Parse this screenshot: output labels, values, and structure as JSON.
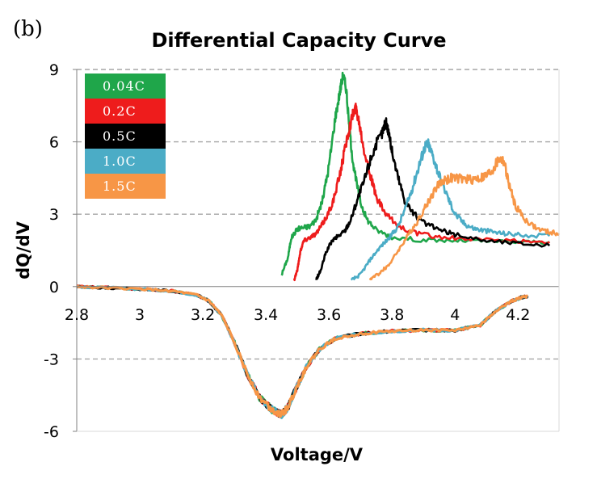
{
  "panel_label": "(b)",
  "chart_data": {
    "type": "line",
    "title": "Differential Capacity Curve",
    "xlabel": "Voltage/V",
    "ylabel": "dQ/dV",
    "xlim": [
      2.8,
      4.33
    ],
    "ylim": [
      -6,
      9
    ],
    "x_ticks": [
      2.8,
      3,
      3.2,
      3.4,
      3.6,
      3.8,
      4,
      4.2
    ],
    "x_tick_labels": [
      "2.8",
      "3",
      "3.2",
      "3.4",
      "3.6",
      "3.8",
      "4",
      "4.2"
    ],
    "y_ticks": [
      -6,
      -3,
      0,
      3,
      6,
      9
    ],
    "y_tick_labels": [
      "-6",
      "-3",
      "0",
      "3",
      "6",
      "9"
    ],
    "grid": "horizontal dashed",
    "legend_position": "top-left",
    "series": [
      {
        "name": "0.04C",
        "color": "#1fa64a",
        "charge": [
          [
            3.45,
            0.5
          ],
          [
            3.47,
            1.2
          ],
          [
            3.48,
            2.0
          ],
          [
            3.5,
            2.4
          ],
          [
            3.52,
            2.45
          ],
          [
            3.54,
            2.5
          ],
          [
            3.56,
            2.8
          ],
          [
            3.58,
            3.6
          ],
          [
            3.6,
            5.0
          ],
          [
            3.62,
            7.0
          ],
          [
            3.635,
            8.1
          ],
          [
            3.645,
            8.8
          ],
          [
            3.655,
            8.2
          ],
          [
            3.665,
            6.5
          ],
          [
            3.68,
            4.8
          ],
          [
            3.7,
            3.5
          ],
          [
            3.72,
            2.8
          ],
          [
            3.75,
            2.35
          ],
          [
            3.8,
            2.05
          ],
          [
            3.9,
            1.92
          ],
          [
            4.0,
            1.9
          ],
          [
            4.1,
            1.88
          ],
          [
            4.2,
            1.85
          ],
          [
            4.3,
            1.85
          ]
        ]
      },
      {
        "name": "0.2C",
        "color": "#ee1c1c",
        "charge": [
          [
            3.49,
            0.3
          ],
          [
            3.5,
            0.7
          ],
          [
            3.51,
            1.5
          ],
          [
            3.52,
            1.9
          ],
          [
            3.54,
            2.05
          ],
          [
            3.56,
            2.2
          ],
          [
            3.58,
            2.6
          ],
          [
            3.6,
            3.1
          ],
          [
            3.62,
            3.8
          ],
          [
            3.64,
            5.0
          ],
          [
            3.66,
            6.3
          ],
          [
            3.675,
            7.1
          ],
          [
            3.685,
            7.4
          ],
          [
            3.695,
            6.9
          ],
          [
            3.71,
            5.8
          ],
          [
            3.73,
            4.7
          ],
          [
            3.75,
            3.7
          ],
          [
            3.78,
            3.0
          ],
          [
            3.82,
            2.5
          ],
          [
            3.88,
            2.2
          ],
          [
            3.95,
            2.05
          ],
          [
            4.05,
            1.95
          ],
          [
            4.2,
            1.88
          ],
          [
            4.3,
            1.85
          ]
        ]
      },
      {
        "name": "0.5C",
        "color": "#000000",
        "charge": [
          [
            3.56,
            0.3
          ],
          [
            3.575,
            0.7
          ],
          [
            3.59,
            1.4
          ],
          [
            3.61,
            1.9
          ],
          [
            3.63,
            2.1
          ],
          [
            3.65,
            2.3
          ],
          [
            3.67,
            2.8
          ],
          [
            3.69,
            3.6
          ],
          [
            3.71,
            4.3
          ],
          [
            3.73,
            5.2
          ],
          [
            3.75,
            5.9
          ],
          [
            3.77,
            6.4
          ],
          [
            3.78,
            6.85
          ],
          [
            3.79,
            6.4
          ],
          [
            3.8,
            5.6
          ],
          [
            3.82,
            4.5
          ],
          [
            3.84,
            3.6
          ],
          [
            3.87,
            3.0
          ],
          [
            3.9,
            2.65
          ],
          [
            3.95,
            2.35
          ],
          [
            4.0,
            2.15
          ],
          [
            4.1,
            1.9
          ],
          [
            4.2,
            1.8
          ],
          [
            4.3,
            1.7
          ]
        ]
      },
      {
        "name": "1.0C",
        "color": "#4bacc6",
        "charge": [
          [
            3.67,
            0.25
          ],
          [
            3.7,
            0.5
          ],
          [
            3.73,
            1.1
          ],
          [
            3.76,
            1.6
          ],
          [
            3.79,
            2.0
          ],
          [
            3.82,
            2.5
          ],
          [
            3.85,
            3.5
          ],
          [
            3.87,
            4.3
          ],
          [
            3.89,
            5.2
          ],
          [
            3.905,
            5.8
          ],
          [
            3.915,
            5.9
          ],
          [
            3.93,
            5.4
          ],
          [
            3.95,
            4.6
          ],
          [
            3.98,
            3.6
          ],
          [
            4.0,
            3.0
          ],
          [
            4.03,
            2.6
          ],
          [
            4.06,
            2.4
          ],
          [
            4.1,
            2.3
          ],
          [
            4.15,
            2.2
          ],
          [
            4.2,
            2.15
          ],
          [
            4.3,
            2.1
          ]
        ]
      },
      {
        "name": "1.5C",
        "color": "#f79646",
        "charge": [
          [
            3.73,
            0.3
          ],
          [
            3.76,
            0.55
          ],
          [
            3.79,
            0.9
          ],
          [
            3.82,
            1.5
          ],
          [
            3.85,
            2.1
          ],
          [
            3.88,
            2.7
          ],
          [
            3.91,
            3.4
          ],
          [
            3.94,
            4.1
          ],
          [
            3.96,
            4.4
          ],
          [
            3.99,
            4.5
          ],
          [
            4.02,
            4.45
          ],
          [
            4.05,
            4.45
          ],
          [
            4.08,
            4.5
          ],
          [
            4.1,
            4.6
          ],
          [
            4.12,
            4.85
          ],
          [
            4.14,
            5.3
          ],
          [
            4.155,
            5.2
          ],
          [
            4.17,
            4.3
          ],
          [
            4.19,
            3.4
          ],
          [
            4.22,
            2.8
          ],
          [
            4.26,
            2.4
          ],
          [
            4.3,
            2.25
          ],
          [
            4.33,
            2.2
          ]
        ]
      }
    ],
    "discharge": [
      [
        2.8,
        0.0
      ],
      [
        2.9,
        -0.05
      ],
      [
        3.0,
        -0.1
      ],
      [
        3.1,
        -0.18
      ],
      [
        3.18,
        -0.35
      ],
      [
        3.22,
        -0.6
      ],
      [
        3.26,
        -1.2
      ],
      [
        3.3,
        -2.3
      ],
      [
        3.34,
        -3.6
      ],
      [
        3.38,
        -4.6
      ],
      [
        3.42,
        -5.1
      ],
      [
        3.45,
        -5.3
      ],
      [
        3.47,
        -5.0
      ],
      [
        3.5,
        -4.1
      ],
      [
        3.53,
        -3.3
      ],
      [
        3.57,
        -2.6
      ],
      [
        3.62,
        -2.15
      ],
      [
        3.7,
        -1.95
      ],
      [
        3.8,
        -1.85
      ],
      [
        3.9,
        -1.8
      ],
      [
        4.0,
        -1.82
      ],
      [
        4.08,
        -1.6
      ],
      [
        4.13,
        -1.0
      ],
      [
        4.18,
        -0.6
      ],
      [
        4.21,
        -0.45
      ],
      [
        4.23,
        -0.4
      ]
    ]
  }
}
